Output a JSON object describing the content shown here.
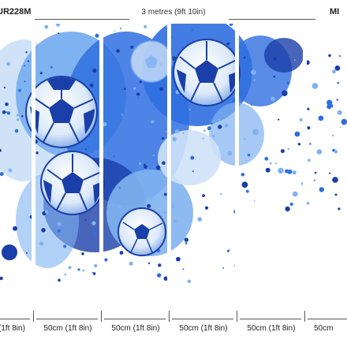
{
  "header": {
    "code_left": "UR228M",
    "code_right": "MI",
    "overall_width": "3 metres (9ft 10in)"
  },
  "panels": [
    {
      "label": "(1ft 8in)"
    },
    {
      "label": "50cm (1ft 8in)"
    },
    {
      "label": "50cm (1ft 8in)"
    },
    {
      "label": "50cm (1ft 8in)"
    },
    {
      "label": "50cm (1ft 8in)"
    },
    {
      "label": "50cm"
    }
  ],
  "colors": {
    "dark_blue": "#1a3fa8",
    "mid_blue": "#2f6fe0",
    "light_blue": "#7fb2f0",
    "pale_blue": "#cfe2f8"
  }
}
